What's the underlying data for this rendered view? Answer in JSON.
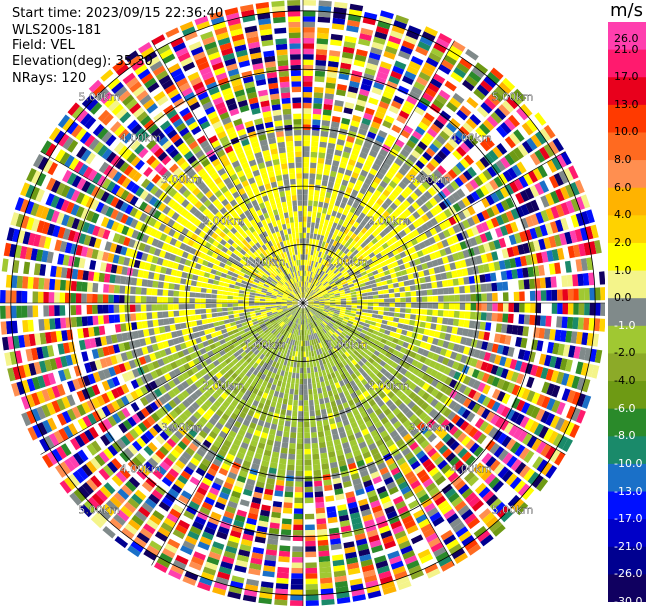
{
  "header": {
    "start_time": "Start time: 2023/09/15 22:36:40",
    "instrument": "WLS200s-181",
    "field": "Field: VEL",
    "elevation": "Elevation(deg): 35.30",
    "nrays": "NRays: 120"
  },
  "colorbar": {
    "unit": "m/s",
    "labels": [
      "26.0",
      "21.0",
      "17.0",
      "13.0",
      "10.0",
      "8.0",
      "6.0",
      "4.0",
      "2.0",
      "1.0",
      "0.0",
      "-1.0",
      "-2.0",
      "-4.0",
      "-6.0",
      "-8.0",
      "-10.0",
      "-13.0",
      "-17.0",
      "-21.0",
      "-26.0",
      "-30.0"
    ],
    "colors": [
      "#ff3fae",
      "#ff1a6e",
      "#e8001c",
      "#ff3a00",
      "#ff6a20",
      "#ff8f50",
      "#ffb300",
      "#ffd200",
      "#ffff00",
      "#f4f48a",
      "#808a8a",
      "#a0c832",
      "#8caa28",
      "#6e9a14",
      "#2a8a2a",
      "#1a8a6a",
      "#1a70c8",
      "#0010ff",
      "#0000c8",
      "#000090",
      "#100060"
    ],
    "label_colors": [
      "#000",
      "#000",
      "#000",
      "#000",
      "#000",
      "#000",
      "#000",
      "#000",
      "#000",
      "#000",
      "#000",
      "#fff",
      "#000",
      "#000",
      "#fff",
      "#fff",
      "#fff",
      "#fff",
      "#fff",
      "#fff",
      "#fff",
      "#fff"
    ]
  },
  "chart_data": {
    "type": "heatmap",
    "title": "",
    "projection": "PPI (polar)",
    "field": "VEL",
    "units": "m/s",
    "nrays": 120,
    "range_rings_km": [
      1.0,
      2.0,
      3.0,
      4.0,
      5.0
    ],
    "ring_labels": [
      "1.00km",
      "2.00km",
      "3.00km",
      "4.00km",
      "5.00km"
    ],
    "spokes_deg": [
      0,
      30,
      60,
      90,
      120,
      150,
      180,
      210,
      240,
      270,
      300,
      330
    ],
    "value_range": [
      -30.0,
      26.0
    ],
    "pattern": {
      "near_field": "gray (0.0 m/s) mixed with yellow (+2.0) toward north/west/east and olive green (-2.0) toward south",
      "far_field": "noisy values across the full colour range beyond ~3.5 km"
    }
  }
}
